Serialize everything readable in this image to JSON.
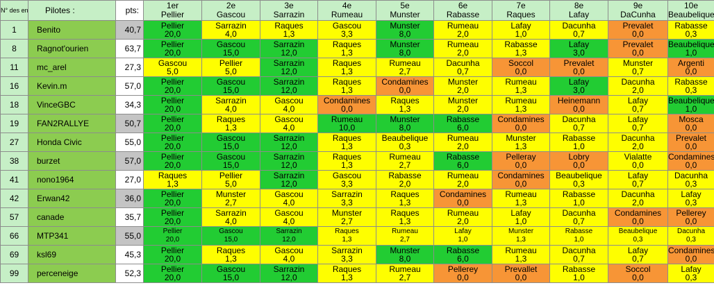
{
  "header": {
    "no_label": "N° des engagés",
    "pilotes_label": "Pilotes :",
    "pts_label": "pts:",
    "places": [
      {
        "rank": "1er",
        "name": "Pellier"
      },
      {
        "rank": "2e",
        "name": "Gascou"
      },
      {
        "rank": "3e",
        "name": "Sarrazin"
      },
      {
        "rank": "4e",
        "name": "Rumeau"
      },
      {
        "rank": "5e",
        "name": "Munster"
      },
      {
        "rank": "6e",
        "name": "Rabasse"
      },
      {
        "rank": "7e",
        "name": "Raques"
      },
      {
        "rank": "8e",
        "name": "Lafay"
      },
      {
        "rank": "9e",
        "name": "DaCunha"
      },
      {
        "rank": "10e",
        "name": "Beaubelique"
      }
    ]
  },
  "colors": {
    "green": "#22cc33",
    "yellow": "#fefe00",
    "orange": "#f79536",
    "pilot_bg": "#8ccc50",
    "points_grey": "#c4c4c4"
  },
  "rows": [
    {
      "no": "1",
      "pilote": "Benito",
      "pts": "40,7",
      "pts_grey": true,
      "small": false,
      "cells": [
        {
          "n": "Pellier",
          "p": "20,0",
          "c": "g"
        },
        {
          "n": "Sarrazin",
          "p": "4,0",
          "c": "y"
        },
        {
          "n": "Raques",
          "p": "1,3",
          "c": "y"
        },
        {
          "n": "Gascou",
          "p": "3,3",
          "c": "y"
        },
        {
          "n": "Munster",
          "p": "8,0",
          "c": "g"
        },
        {
          "n": "Rumeau",
          "p": "2,0",
          "c": "y"
        },
        {
          "n": "Lafay",
          "p": "1,0",
          "c": "y"
        },
        {
          "n": "Dacunha",
          "p": "0,7",
          "c": "y"
        },
        {
          "n": "Prevalet",
          "p": "0,0",
          "c": "o"
        },
        {
          "n": "Rabasse",
          "p": "0,3",
          "c": "y"
        }
      ]
    },
    {
      "no": "8",
      "pilote": "Ragnot'ourien",
      "pts": "63,7",
      "pts_grey": false,
      "small": false,
      "cells": [
        {
          "n": "Pellier",
          "p": "20,0",
          "c": "g"
        },
        {
          "n": "Gascou",
          "p": "15,0",
          "c": "g"
        },
        {
          "n": "Sarrazin",
          "p": "12,0",
          "c": "g"
        },
        {
          "n": "Raques",
          "p": "1,3",
          "c": "y"
        },
        {
          "n": "Munster",
          "p": "8,0",
          "c": "g"
        },
        {
          "n": "Rumeau",
          "p": "2,0",
          "c": "y"
        },
        {
          "n": "Rabasse",
          "p": "1,3",
          "c": "y"
        },
        {
          "n": "Lafay",
          "p": "3,0",
          "c": "g"
        },
        {
          "n": "Prevalet",
          "p": "0,0",
          "c": "o"
        },
        {
          "n": "Beaubelique",
          "p": "1,0",
          "c": "g"
        }
      ]
    },
    {
      "no": "11",
      "pilote": "mc_arel",
      "pts": "27,3",
      "pts_grey": false,
      "small": false,
      "cells": [
        {
          "n": "Gascou",
          "p": "5,0",
          "c": "y"
        },
        {
          "n": "Pellier",
          "p": "5,0",
          "c": "y"
        },
        {
          "n": "Sarrazin",
          "p": "12,0",
          "c": "g"
        },
        {
          "n": "Raques",
          "p": "1,3",
          "c": "y"
        },
        {
          "n": "Rumeau",
          "p": "2,7",
          "c": "y"
        },
        {
          "n": "Dacunha",
          "p": "0,7",
          "c": "y"
        },
        {
          "n": "Soccol",
          "p": "0,0",
          "c": "o"
        },
        {
          "n": "Prevalet",
          "p": "0,0",
          "c": "o"
        },
        {
          "n": "Munster",
          "p": "0,7",
          "c": "y"
        },
        {
          "n": "Argenti",
          "p": "0,0",
          "c": "o"
        }
      ]
    },
    {
      "no": "16",
      "pilote": "Kevin.m",
      "pts": "57,0",
      "pts_grey": false,
      "small": false,
      "cells": [
        {
          "n": "Pellier",
          "p": "20,0",
          "c": "g"
        },
        {
          "n": "Gascou",
          "p": "15,0",
          "c": "g"
        },
        {
          "n": "Sarrazin",
          "p": "12,0",
          "c": "g"
        },
        {
          "n": "Raques",
          "p": "1,3",
          "c": "y"
        },
        {
          "n": "Condamines",
          "p": "0,0",
          "c": "o"
        },
        {
          "n": "Munster",
          "p": "2,0",
          "c": "y"
        },
        {
          "n": "Rumeau",
          "p": "1,3",
          "c": "y"
        },
        {
          "n": "Lafay",
          "p": "3,0",
          "c": "g"
        },
        {
          "n": "Dacunha",
          "p": "2,0",
          "c": "y"
        },
        {
          "n": "Rabasse",
          "p": "0,3",
          "c": "y"
        }
      ]
    },
    {
      "no": "18",
      "pilote": "VinceGBC",
      "pts": "34,3",
      "pts_grey": false,
      "small": false,
      "cells": [
        {
          "n": "Pellier",
          "p": "20,0",
          "c": "g"
        },
        {
          "n": "Sarrazin",
          "p": "4,0",
          "c": "y"
        },
        {
          "n": "Gascou",
          "p": "4,0",
          "c": "y"
        },
        {
          "n": "Condamines",
          "p": "0,0",
          "c": "o"
        },
        {
          "n": "Raques",
          "p": "1,3",
          "c": "y"
        },
        {
          "n": "Munster",
          "p": "2,0",
          "c": "y"
        },
        {
          "n": "Rumeau",
          "p": "1,3",
          "c": "y"
        },
        {
          "n": "Heinemann",
          "p": "0,0",
          "c": "o"
        },
        {
          "n": "Lafay",
          "p": "0,7",
          "c": "y"
        },
        {
          "n": "Beaubelique",
          "p": "1,0",
          "c": "g"
        }
      ]
    },
    {
      "no": "19",
      "pilote": "FAN2RALLYE",
      "pts": "50,7",
      "pts_grey": true,
      "small": false,
      "cells": [
        {
          "n": "Pellier",
          "p": "20,0",
          "c": "g"
        },
        {
          "n": "Raques",
          "p": "1,3",
          "c": "y"
        },
        {
          "n": "Gascou",
          "p": "4,0",
          "c": "y"
        },
        {
          "n": "Rumeau",
          "p": "10,0",
          "c": "g"
        },
        {
          "n": "Munster",
          "p": "8,0",
          "c": "g"
        },
        {
          "n": "Rabasse",
          "p": "6,0",
          "c": "g"
        },
        {
          "n": "Condamines",
          "p": "0,0",
          "c": "o"
        },
        {
          "n": "Dacunha",
          "p": "0,7",
          "c": "y"
        },
        {
          "n": "Lafay",
          "p": "0,7",
          "c": "y"
        },
        {
          "n": "Mosca",
          "p": "0,0",
          "c": "o"
        }
      ]
    },
    {
      "no": "27",
      "pilote": "Honda Civic",
      "pts": "55,0",
      "pts_grey": false,
      "small": false,
      "cells": [
        {
          "n": "Pellier",
          "p": "20,0",
          "c": "g"
        },
        {
          "n": "Gascou",
          "p": "15,0",
          "c": "g"
        },
        {
          "n": "Sarrazin",
          "p": "12,0",
          "c": "g"
        },
        {
          "n": "Raques",
          "p": "1,3",
          "c": "y"
        },
        {
          "n": "Beaubelique",
          "p": "0,3",
          "c": "y"
        },
        {
          "n": "Rumeau",
          "p": "2,0",
          "c": "y"
        },
        {
          "n": "Munster",
          "p": "1,3",
          "c": "y"
        },
        {
          "n": "Rabasse",
          "p": "1,0",
          "c": "y"
        },
        {
          "n": "Dacunha",
          "p": "2,0",
          "c": "y"
        },
        {
          "n": "Prevalet",
          "p": "0,0",
          "c": "o"
        }
      ]
    },
    {
      "no": "38",
      "pilote": "burzet",
      "pts": "57,0",
      "pts_grey": true,
      "small": false,
      "cells": [
        {
          "n": "Pellier",
          "p": "20,0",
          "c": "g"
        },
        {
          "n": "Gascou",
          "p": "15,0",
          "c": "g"
        },
        {
          "n": "Sarrazin",
          "p": "12,0",
          "c": "g"
        },
        {
          "n": "Raques",
          "p": "1,3",
          "c": "y"
        },
        {
          "n": "Rumeau",
          "p": "2,7",
          "c": "y"
        },
        {
          "n": "Rabasse",
          "p": "6,0",
          "c": "g"
        },
        {
          "n": "Pelleray",
          "p": "0,0",
          "c": "o"
        },
        {
          "n": "Lobry",
          "p": "0,0",
          "c": "o"
        },
        {
          "n": "Vialatte",
          "p": "0,0",
          "c": "y"
        },
        {
          "n": "Condamines",
          "p": "0,0",
          "c": "o"
        }
      ]
    },
    {
      "no": "41",
      "pilote": "nono1964",
      "pts": "27,0",
      "pts_grey": false,
      "small": false,
      "cells": [
        {
          "n": "Raques",
          "p": "1,3",
          "c": "y"
        },
        {
          "n": "Pellier",
          "p": "5,0",
          "c": "y"
        },
        {
          "n": "Sarrazin",
          "p": "12,0",
          "c": "g"
        },
        {
          "n": "Gascou",
          "p": "3,3",
          "c": "y"
        },
        {
          "n": "Rabasse",
          "p": "2,0",
          "c": "y"
        },
        {
          "n": "Rumeau",
          "p": "2,0",
          "c": "y"
        },
        {
          "n": "Condamines",
          "p": "0,0",
          "c": "o"
        },
        {
          "n": "Beaubelique",
          "p": "0,3",
          "c": "y"
        },
        {
          "n": "Lafay",
          "p": "0,7",
          "c": "y"
        },
        {
          "n": "Dacunha",
          "p": "0,3",
          "c": "y"
        }
      ]
    },
    {
      "no": "42",
      "pilote": "Erwan42",
      "pts": "36,0",
      "pts_grey": true,
      "small": false,
      "cells": [
        {
          "n": "Pellier",
          "p": "20,0",
          "c": "g"
        },
        {
          "n": "Munster",
          "p": "2,7",
          "c": "y"
        },
        {
          "n": "Gascou",
          "p": "4,0",
          "c": "y"
        },
        {
          "n": "Sarrazin",
          "p": "3,3",
          "c": "y"
        },
        {
          "n": "Raques",
          "p": "1,3",
          "c": "y"
        },
        {
          "n": "Condamines",
          "p": "0,0",
          "c": "o"
        },
        {
          "n": "Rumeau",
          "p": "1,3",
          "c": "y"
        },
        {
          "n": "Rabasse",
          "p": "1,0",
          "c": "y"
        },
        {
          "n": "Dacunha",
          "p": "2,0",
          "c": "y"
        },
        {
          "n": "Lafay",
          "p": "0,3",
          "c": "y"
        }
      ]
    },
    {
      "no": "57",
      "pilote": "canade",
      "pts": "35,7",
      "pts_grey": false,
      "small": false,
      "cells": [
        {
          "n": "Pellier",
          "p": "20,0",
          "c": "g"
        },
        {
          "n": "Sarrazin",
          "p": "4,0",
          "c": "y"
        },
        {
          "n": "Gascou",
          "p": "4,0",
          "c": "y"
        },
        {
          "n": "Munster",
          "p": "2,7",
          "c": "y"
        },
        {
          "n": "Raques",
          "p": "1,3",
          "c": "y"
        },
        {
          "n": "Rumeau",
          "p": "2,0",
          "c": "y"
        },
        {
          "n": "Lafay",
          "p": "1,0",
          "c": "y"
        },
        {
          "n": "Dacunha",
          "p": "0,7",
          "c": "y"
        },
        {
          "n": "Condamines",
          "p": "0,0",
          "c": "o"
        },
        {
          "n": "Pellerey",
          "p": "0,0",
          "c": "o"
        }
      ]
    },
    {
      "no": "66",
      "pilote": "MTP341",
      "pts": "55,0",
      "pts_grey": true,
      "small": true,
      "cells": [
        {
          "n": "Pellier",
          "p": "20,0",
          "c": "g"
        },
        {
          "n": "Gascou",
          "p": "15,0",
          "c": "g"
        },
        {
          "n": "Sarrazin",
          "p": "12,0",
          "c": "g"
        },
        {
          "n": "Raques",
          "p": "1,3",
          "c": "y"
        },
        {
          "n": "Rumeau",
          "p": "2,7",
          "c": "y"
        },
        {
          "n": "Lafay",
          "p": "1,0",
          "c": "y"
        },
        {
          "n": "Munster",
          "p": "1,3",
          "c": "y"
        },
        {
          "n": "Rabasse",
          "p": "1,0",
          "c": "y"
        },
        {
          "n": "Beaubelique",
          "p": "0,3",
          "c": "y"
        },
        {
          "n": "Dacunha",
          "p": "0,3",
          "c": "y"
        }
      ]
    },
    {
      "no": "69",
      "pilote": "ksl69",
      "pts": "45,3",
      "pts_grey": false,
      "small": false,
      "cells": [
        {
          "n": "Pellier",
          "p": "20,0",
          "c": "g"
        },
        {
          "n": "Raques",
          "p": "1,3",
          "c": "y"
        },
        {
          "n": "Gascou",
          "p": "4,0",
          "c": "y"
        },
        {
          "n": "Sarrazin",
          "p": "3,3",
          "c": "y"
        },
        {
          "n": "Munster",
          "p": "8,0",
          "c": "g"
        },
        {
          "n": "Rabasse",
          "p": "6,0",
          "c": "g"
        },
        {
          "n": "Rumeau",
          "p": "1,3",
          "c": "y"
        },
        {
          "n": "Dacunha",
          "p": "0,7",
          "c": "y"
        },
        {
          "n": "Lafay",
          "p": "0,7",
          "c": "y"
        },
        {
          "n": "Condamines",
          "p": "0,0",
          "c": "o"
        }
      ]
    },
    {
      "no": "99",
      "pilote": "perceneige",
      "pts": "52,3",
      "pts_grey": false,
      "small": false,
      "cells": [
        {
          "n": "Pellier",
          "p": "20,0",
          "c": "g"
        },
        {
          "n": "Gascou",
          "p": "15,0",
          "c": "g"
        },
        {
          "n": "Sarrazin",
          "p": "12,0",
          "c": "g"
        },
        {
          "n": "Raques",
          "p": "1,3",
          "c": "y"
        },
        {
          "n": "Rumeau",
          "p": "2,7",
          "c": "y"
        },
        {
          "n": "Pellerey",
          "p": "0,0",
          "c": "o"
        },
        {
          "n": "Prevallet",
          "p": "0,0",
          "c": "o"
        },
        {
          "n": "Rabasse",
          "p": "1,0",
          "c": "y"
        },
        {
          "n": "Soccol",
          "p": "0,0",
          "c": "o"
        },
        {
          "n": "Lafay",
          "p": "0,3",
          "c": "y"
        }
      ]
    }
  ]
}
